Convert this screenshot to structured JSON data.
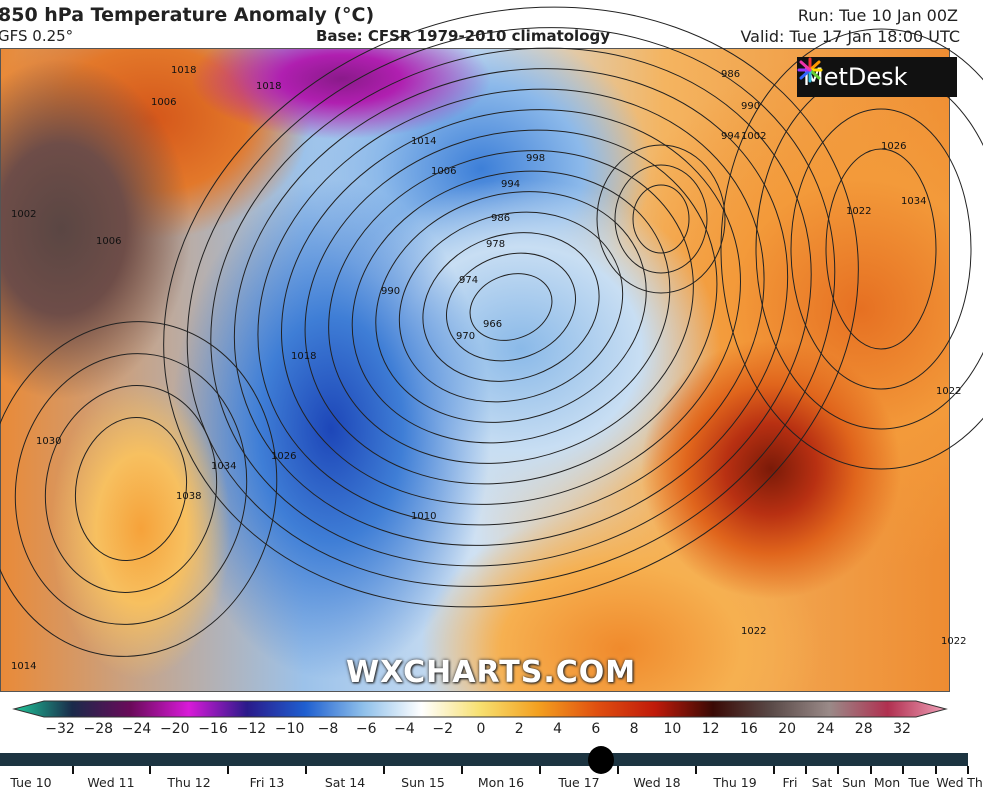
{
  "header": {
    "title": "850 hPa Temperature Anomaly (°C)",
    "model": "GFS 0.25°",
    "base": "Base: CFSR 1979-2010 climatology",
    "run": "Run: Tue 10 Jan 00Z",
    "valid": "Valid: Tue 17 Jan 18:00 UTC"
  },
  "map": {
    "watermark": "WXCHARTS.COM",
    "logo_text": "MetDesk",
    "isobar_labels": [
      "1018",
      "1006",
      "1018",
      "1002",
      "1006",
      "1014",
      "1006",
      "998",
      "994",
      "986",
      "978",
      "974",
      "966",
      "990",
      "970",
      "986",
      "990",
      "994",
      "1002",
      "1026",
      "1022",
      "1034",
      "1022",
      "1018",
      "1026",
      "1030",
      "1034",
      "1038",
      "1010",
      "1022",
      "1022",
      "1014"
    ]
  },
  "colorbar": {
    "labels": [
      "−32",
      "−28",
      "−24",
      "−20",
      "−16",
      "−12",
      "−10",
      "−8",
      "−6",
      "−4",
      "−2",
      "0",
      "2",
      "4",
      "6",
      "8",
      "10",
      "12",
      "16",
      "20",
      "24",
      "28",
      "32"
    ],
    "colors": [
      "#1fc99a",
      "#1a2a4a",
      "#6a0a5a",
      "#d81ad8",
      "#2a1a8a",
      "#1f5fd0",
      "#8fc0ea",
      "#ffffff",
      "#f7e070",
      "#f3a020",
      "#e05010",
      "#c01a0a",
      "#3a0a05",
      "#5a4a48",
      "#9a8a88",
      "#b03050",
      "#f0a0b8"
    ]
  },
  "timeline": {
    "labels": [
      "Tue 10",
      "Wed 11",
      "Thu 12",
      "Fri 13",
      "Sat 14",
      "Sun 15",
      "Mon 16",
      "Tue 17",
      "Wed 18",
      "Thu 19",
      "Fri",
      "Sat",
      "Sun",
      "Mon",
      "Tue",
      "Wed",
      "Th"
    ],
    "current": "Tue 17 Jan 18:00 UTC"
  }
}
